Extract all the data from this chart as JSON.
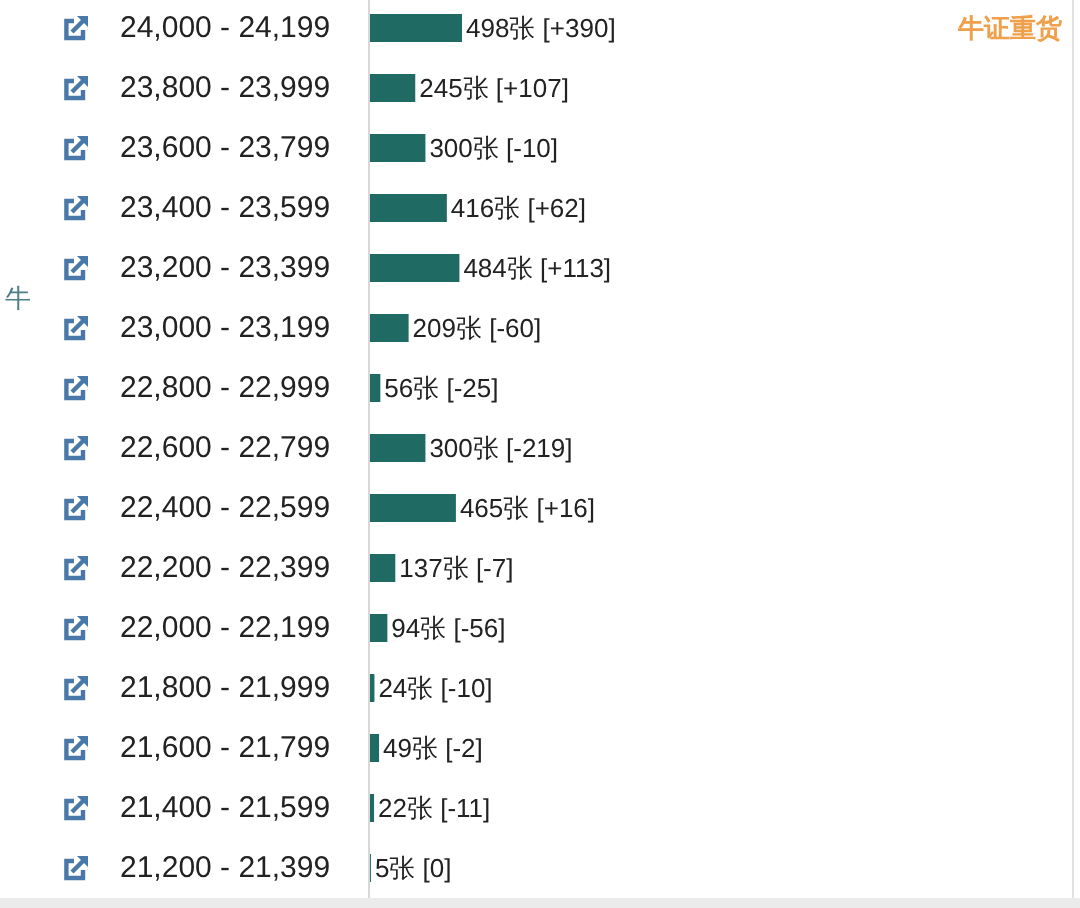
{
  "chart_data": {
    "type": "bar",
    "orientation": "horizontal",
    "title": "牛证重货",
    "ylabel": "牛",
    "categories": [
      "24,000 - 24,199",
      "23,800 - 23,999",
      "23,600 - 23,799",
      "23,400 - 23,599",
      "23,200 - 23,399",
      "23,000 - 23,199",
      "22,800 - 22,999",
      "22,600 - 22,799",
      "22,400 - 22,599",
      "22,200 - 22,399",
      "22,000 - 22,199",
      "21,800 - 21,999",
      "21,600 - 21,799",
      "21,400 - 21,599",
      "21,200 - 21,399"
    ],
    "values": [
      498,
      245,
      300,
      416,
      484,
      209,
      56,
      300,
      465,
      137,
      94,
      24,
      49,
      22,
      5
    ],
    "color": "#1f6b63",
    "value_labels": [
      "498张 [+390]",
      "245张 [+107]",
      "300张 [-10]",
      "416张 [+62]",
      "484张 [+113]",
      "209张 [-60]",
      "56张 [-25]",
      "300张 [-219]",
      "465张 [+16]",
      "137张 [-7]",
      "94张 [-56]",
      "24张 [-10]",
      "49张 [-2]",
      "22张 [-11]",
      "5张 [0]"
    ]
  }
}
